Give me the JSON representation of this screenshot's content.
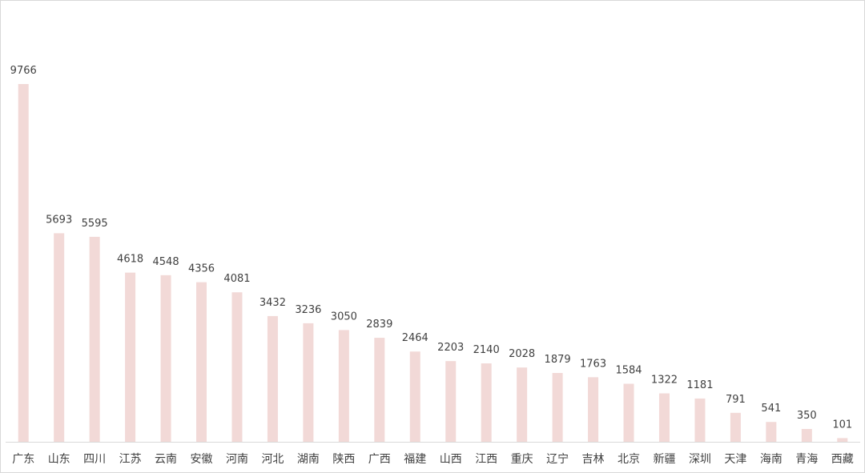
{
  "chart_data": {
    "type": "bar",
    "categories": [
      "广东",
      "山东",
      "四川",
      "江苏",
      "云南",
      "安徽",
      "河南",
      "河北",
      "湖南",
      "陕西",
      "广西",
      "福建",
      "山西",
      "江西",
      "重庆",
      "辽宁",
      "吉林",
      "北京",
      "新疆",
      "深圳",
      "天津",
      "海南",
      "青海",
      "西藏"
    ],
    "values": [
      9766,
      5693,
      5595,
      4618,
      4548,
      4356,
      4081,
      3432,
      3236,
      3050,
      2839,
      2464,
      2203,
      2140,
      2028,
      1879,
      1763,
      1584,
      1322,
      1181,
      791,
      541,
      350,
      101
    ],
    "title": "",
    "xlabel": "",
    "ylabel": "",
    "ylim": [
      0,
      9766
    ],
    "grid": false,
    "legend": "none",
    "colors": {
      "bar": "#f2d9d7",
      "text": "#404040",
      "axis": "#d9d9d9",
      "border": "#d9d9d9"
    }
  }
}
